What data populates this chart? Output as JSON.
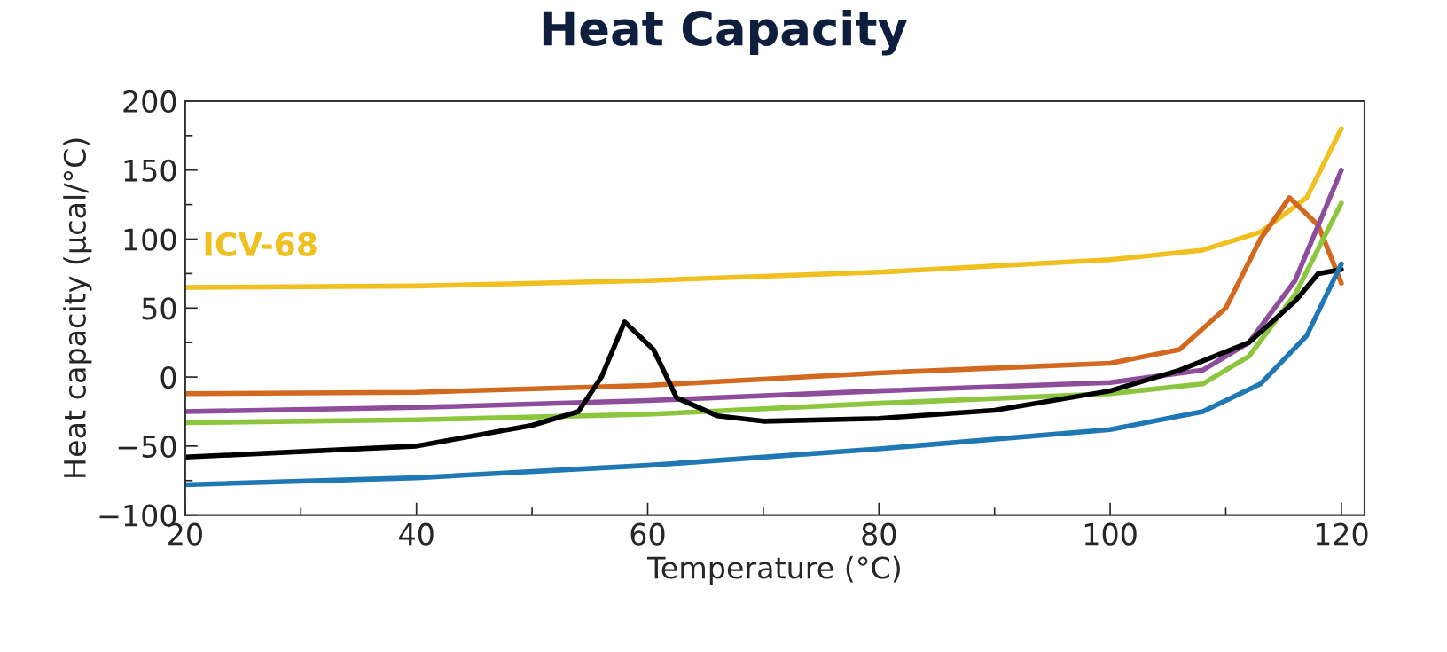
{
  "chart_data": {
    "type": "line",
    "title": "Heat Capacity",
    "xlabel": "Temperature (°C)",
    "ylabel": "Heat capacity (µcal/°C)",
    "xlim": [
      20,
      122
    ],
    "xticks": [
      20,
      40,
      60,
      80,
      100,
      120
    ],
    "ylim": [
      -100,
      200
    ],
    "yticks": [
      -100,
      -50,
      0,
      50,
      100,
      150,
      200
    ],
    "grid": false,
    "legend": false,
    "marker": "none",
    "line_style": "solid",
    "series": [
      {
        "name": "ICV-68",
        "color": "#f0c020",
        "x": [
          20,
          40,
          60,
          80,
          100,
          108,
          113,
          117,
          120
        ],
        "values": [
          65,
          66,
          70,
          76,
          85,
          92,
          105,
          130,
          180
        ]
      },
      {
        "color": "#d2691e",
        "x": [
          20,
          40,
          60,
          80,
          100,
          106,
          110,
          113,
          115.5,
          118,
          120
        ],
        "values": [
          -12,
          -11,
          -6,
          3,
          10,
          20,
          50,
          100,
          130,
          110,
          68
        ]
      },
      {
        "color": "#8e4d9a",
        "x": [
          20,
          40,
          60,
          80,
          100,
          108,
          112,
          116,
          120
        ],
        "values": [
          -25,
          -22,
          -17,
          -10,
          -4,
          5,
          25,
          70,
          150
        ]
      },
      {
        "color": "#8cc63f",
        "x": [
          20,
          40,
          60,
          80,
          100,
          108,
          112,
          116,
          120
        ],
        "values": [
          -33,
          -31,
          -27,
          -19,
          -12,
          -5,
          15,
          60,
          126
        ]
      },
      {
        "color": "#000000",
        "x": [
          20,
          40,
          50,
          54,
          56,
          58,
          60.5,
          62.5,
          66,
          70,
          80,
          90,
          100,
          106,
          112,
          116,
          118,
          120
        ],
        "values": [
          -58,
          -50,
          -35,
          -25,
          0,
          40,
          20,
          -15,
          -28,
          -32,
          -30,
          -24,
          -10,
          5,
          25,
          55,
          75,
          78
        ]
      },
      {
        "color": "#1f77b4",
        "x": [
          20,
          40,
          60,
          80,
          100,
          108,
          113,
          117,
          120
        ],
        "values": [
          -78,
          -73,
          -64,
          -52,
          -38,
          -25,
          -5,
          30,
          82
        ]
      }
    ]
  }
}
